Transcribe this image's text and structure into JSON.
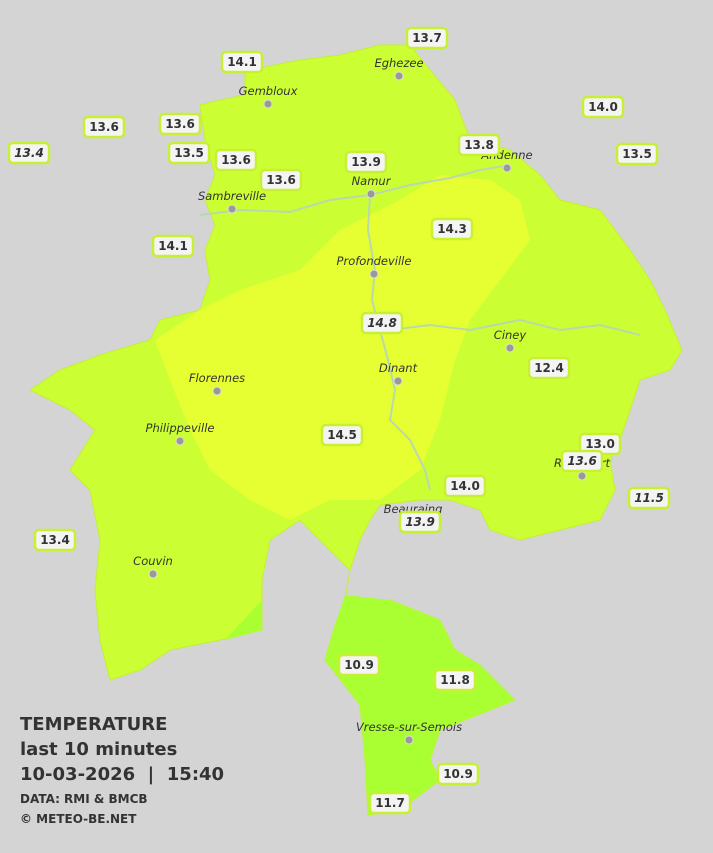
{
  "legend": {
    "title": "TEMPERATURE",
    "subtitle": "last 10 minutes",
    "datetime": "10-03-2026  |  15:40",
    "source": "DATA: RMI & BMCB",
    "credit": "© METEO-BE.NET"
  },
  "cities": [
    "Eghezee",
    "Gembloux",
    "Andenne",
    "Namur",
    "Sambreville",
    "Profondeville",
    "Ciney",
    "Dinant",
    "Florennes",
    "Philippeville",
    "Rochefort",
    "Beauraing",
    "Couvin",
    "Vresse-sur-Semois"
  ],
  "stations": [
    {
      "label": "14.1",
      "italic": false
    },
    {
      "label": "13.7",
      "italic": false
    },
    {
      "label": "13.6",
      "italic": false
    },
    {
      "label": "13.6",
      "italic": false
    },
    {
      "label": "13.4",
      "italic": true
    },
    {
      "label": "13.5",
      "italic": false
    },
    {
      "label": "13.6",
      "italic": false
    },
    {
      "label": "13.6",
      "italic": false
    },
    {
      "label": "13.9",
      "italic": false
    },
    {
      "label": "13.8",
      "italic": false
    },
    {
      "label": "14.0",
      "italic": false
    },
    {
      "label": "13.5",
      "italic": false
    },
    {
      "label": "14.1",
      "italic": false
    },
    {
      "label": "14.3",
      "italic": false
    },
    {
      "label": "14.8",
      "italic": true
    },
    {
      "label": "12.4",
      "italic": false
    },
    {
      "label": "14.5",
      "italic": false
    },
    {
      "label": "13.0",
      "italic": false
    },
    {
      "label": "13.6",
      "italic": true
    },
    {
      "label": "11.5",
      "italic": true
    },
    {
      "label": "14.0",
      "italic": false
    },
    {
      "label": "13.9",
      "italic": true
    },
    {
      "label": "13.4",
      "italic": false
    },
    {
      "label": "10.9",
      "italic": false
    },
    {
      "label": "11.8",
      "italic": false
    },
    {
      "label": "10.9",
      "italic": false
    },
    {
      "label": "11.7",
      "italic": false
    }
  ]
}
